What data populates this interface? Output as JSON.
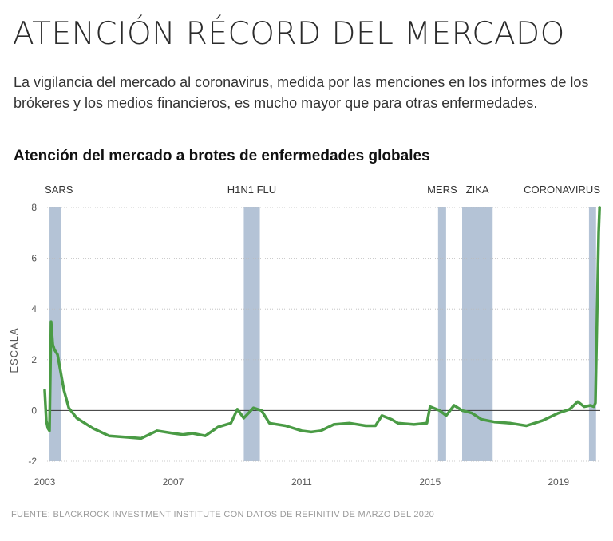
{
  "header": {
    "title": "ATENCIÓN RÉCORD DEL MERCADO",
    "subtitle": "La vigilancia del mercado al coronavirus, medida por las menciones en los informes de  los brókeres y los medios financieros, es mucho mayor que para otras enfermedades.",
    "chart_heading": "Atención del mercado a brotes de enfermedades globales"
  },
  "footer": {
    "source": "FUENTE: BLACKROCK INVESTMENT INSTITUTE CON DATOS DE REFINITIV DE MARZO DEL 2020"
  },
  "colors": {
    "line": "#4a9b45",
    "band": "#b4c3d6",
    "zero": "#333333",
    "grid": "#bbbbbb"
  },
  "chart_data": {
    "type": "line",
    "title": "Atención del mercado a brotes de enfermedades globales",
    "ylabel": "ESCALA",
    "xlabel": "",
    "xlim": [
      2003,
      2020.3
    ],
    "ylim": [
      -2,
      8
    ],
    "yticks": [
      -2,
      0,
      2,
      4,
      6,
      8
    ],
    "xticks": [
      2003,
      2007,
      2011,
      2015,
      2019
    ],
    "events": [
      {
        "name": "SARS",
        "start": 2003.15,
        "end": 2003.5
      },
      {
        "name": "H1N1 FLU",
        "start": 2009.2,
        "end": 2009.7
      },
      {
        "name": "MERS",
        "start": 2015.25,
        "end": 2015.5
      },
      {
        "name": "ZIKA",
        "start": 2016.0,
        "end": 2016.95
      },
      {
        "name": "CORONAVIRUS",
        "start": 2019.95,
        "end": 2020.17
      }
    ],
    "series": [
      {
        "name": "Atención del mercado",
        "x": [
          2003.0,
          2003.05,
          2003.1,
          2003.15,
          2003.2,
          2003.25,
          2003.3,
          2003.4,
          2003.5,
          2003.6,
          2003.75,
          2004.0,
          2004.5,
          2005.0,
          2005.5,
          2006.0,
          2006.5,
          2007.0,
          2007.3,
          2007.6,
          2008.0,
          2008.4,
          2008.8,
          2009.0,
          2009.2,
          2009.5,
          2009.75,
          2010.0,
          2010.5,
          2011.0,
          2011.3,
          2011.6,
          2012.0,
          2012.5,
          2013.0,
          2013.3,
          2013.5,
          2013.8,
          2014.0,
          2014.5,
          2014.9,
          2015.0,
          2015.3,
          2015.5,
          2015.75,
          2016.0,
          2016.3,
          2016.6,
          2017.0,
          2017.5,
          2018.0,
          2018.5,
          2019.0,
          2019.35,
          2019.6,
          2019.8,
          2020.0,
          2020.1,
          2020.15,
          2020.22,
          2020.25,
          2020.28
        ],
        "y": [
          0.8,
          -0.4,
          -0.7,
          -0.8,
          3.5,
          2.6,
          2.4,
          2.2,
          1.5,
          0.8,
          0.1,
          -0.3,
          -0.7,
          -1.0,
          -1.05,
          -1.1,
          -0.8,
          -0.9,
          -0.95,
          -0.9,
          -1.0,
          -0.65,
          -0.5,
          0.05,
          -0.3,
          0.1,
          0.0,
          -0.5,
          -0.6,
          -0.8,
          -0.85,
          -0.8,
          -0.55,
          -0.5,
          -0.6,
          -0.6,
          -0.2,
          -0.35,
          -0.5,
          -0.55,
          -0.5,
          0.15,
          0.0,
          -0.2,
          0.2,
          0.0,
          -0.1,
          -0.35,
          -0.45,
          -0.5,
          -0.6,
          -0.4,
          -0.1,
          0.05,
          0.35,
          0.15,
          0.2,
          0.15,
          0.3,
          5.0,
          7.0,
          8.0
        ]
      }
    ]
  }
}
